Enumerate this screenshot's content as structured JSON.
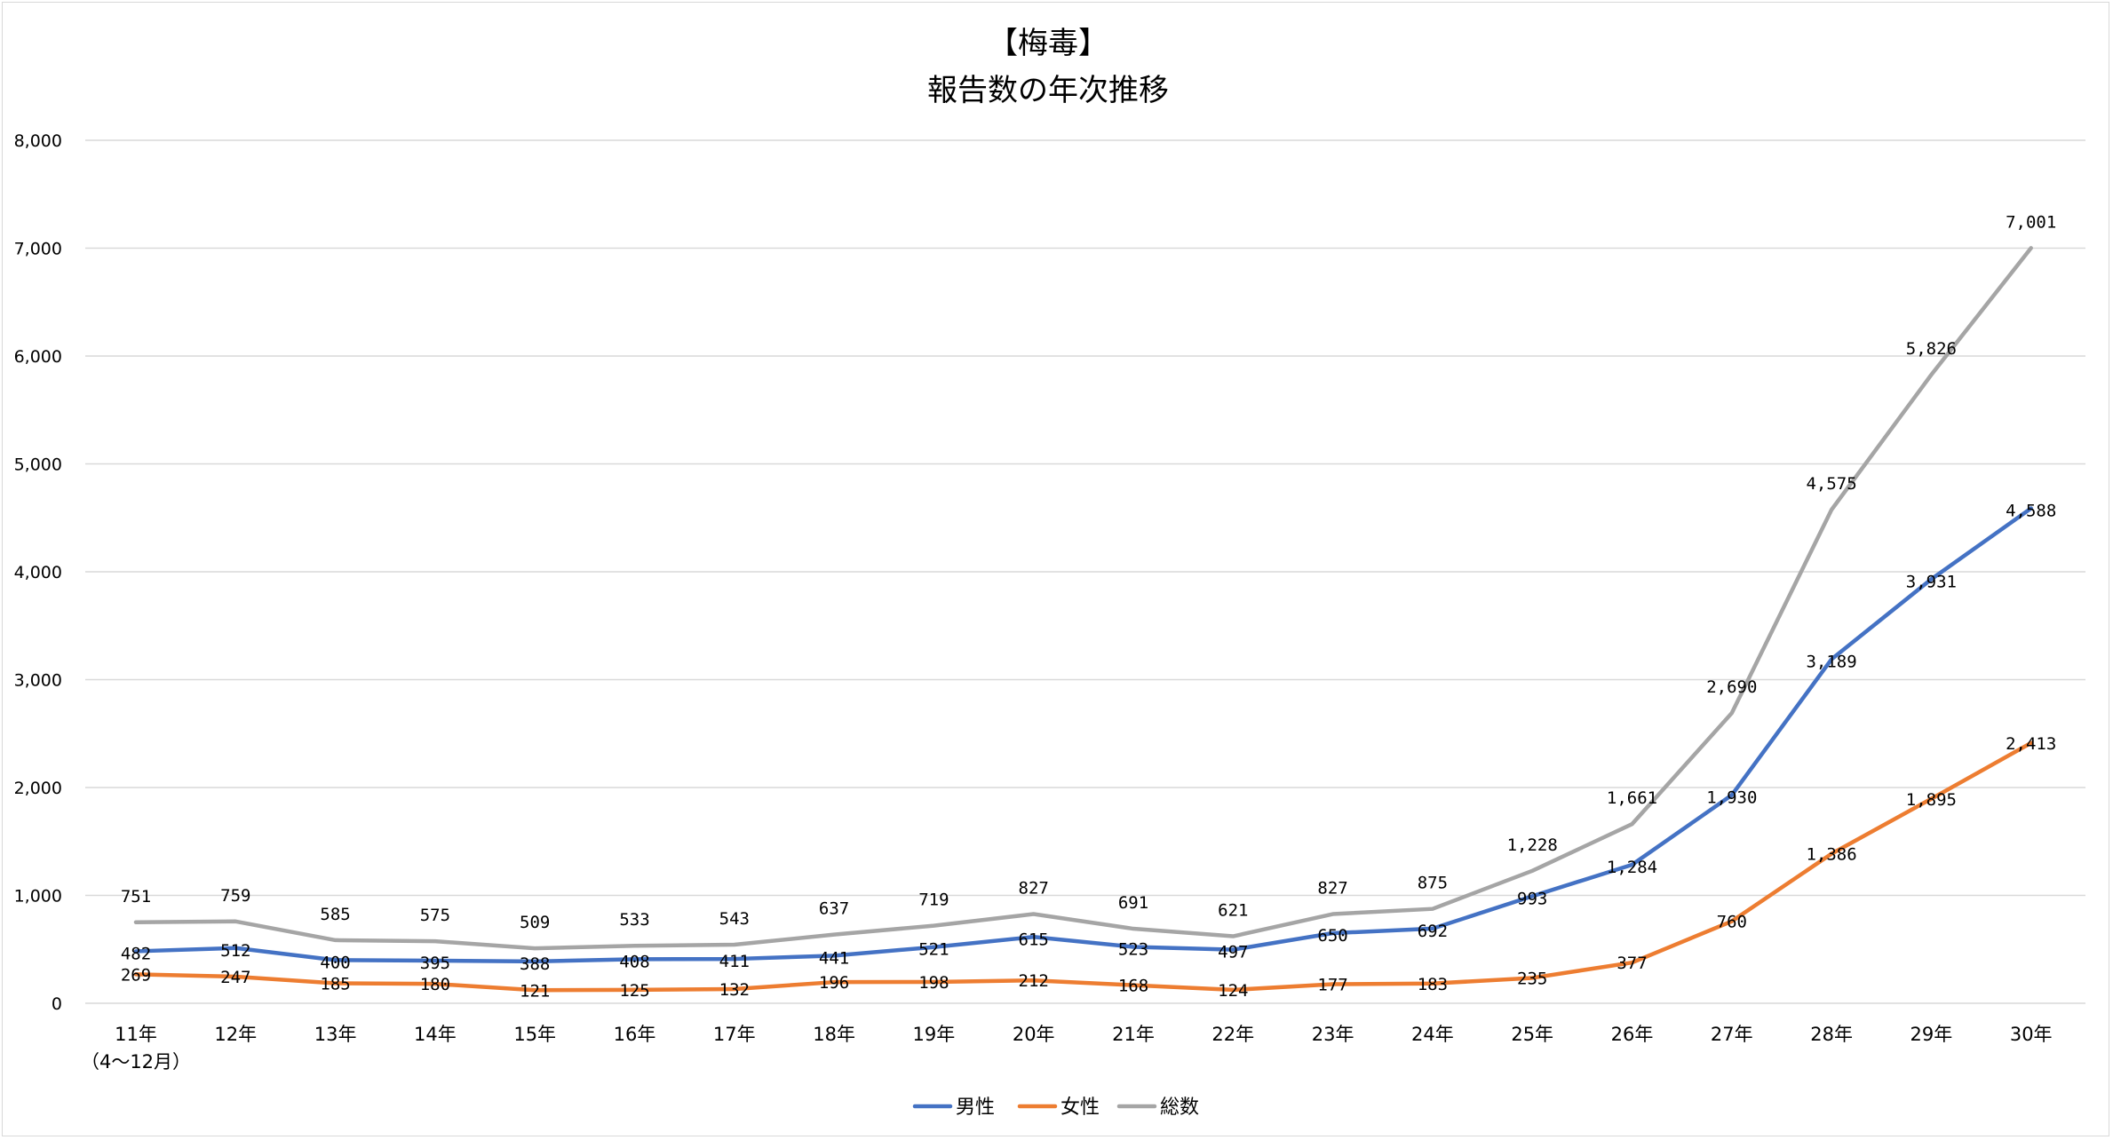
{
  "chart_data": {
    "type": "line",
    "title": "【梅毒】",
    "subtitle": "報告数の年次推移",
    "categories": [
      "11年",
      "12年",
      "13年",
      "14年",
      "15年",
      "16年",
      "17年",
      "18年",
      "19年",
      "20年",
      "21年",
      "22年",
      "23年",
      "24年",
      "25年",
      "26年",
      "27年",
      "28年",
      "29年",
      "30年"
    ],
    "category_note": "（4～12月）",
    "ylim": [
      0,
      8000
    ],
    "yticks": [
      "0",
      "1,000",
      "2,000",
      "3,000",
      "4,000",
      "5,000",
      "6,000",
      "7,000",
      "8,000"
    ],
    "grid": true,
    "legend_position": "bottom",
    "series": [
      {
        "name": "男性",
        "color": "#4472c4",
        "values": [
          482,
          512,
          400,
          395,
          388,
          408,
          411,
          441,
          521,
          615,
          523,
          497,
          650,
          692,
          993,
          1284,
          1930,
          3189,
          3931,
          4588
        ],
        "labels": [
          "482",
          "512",
          "400",
          "395",
          "388",
          "408",
          "411",
          "441",
          "521",
          "615",
          "523",
          "497",
          "650",
          "692",
          "993",
          "1,284",
          "1,930",
          "3,189",
          "3,931",
          "4,588"
        ]
      },
      {
        "name": "女性",
        "color": "#ed7d31",
        "values": [
          269,
          247,
          185,
          180,
          121,
          125,
          132,
          196,
          198,
          212,
          168,
          124,
          177,
          183,
          235,
          377,
          760,
          1386,
          1895,
          2413
        ],
        "labels": [
          "269",
          "247",
          "185",
          "180",
          "121",
          "125",
          "132",
          "196",
          "198",
          "212",
          "168",
          "124",
          "177",
          "183",
          "235",
          "377",
          "760",
          "1,386",
          "1,895",
          "2,413"
        ]
      },
      {
        "name": "総数",
        "color": "#a5a5a5",
        "values": [
          751,
          759,
          585,
          575,
          509,
          533,
          543,
          637,
          719,
          827,
          691,
          621,
          827,
          875,
          1228,
          1661,
          2690,
          4575,
          5826,
          7001
        ],
        "labels": [
          "751",
          "759",
          "585",
          "575",
          "509",
          "533",
          "543",
          "637",
          "719",
          "827",
          "691",
          "621",
          "827",
          "875",
          "1,228",
          "1,661",
          "2,690",
          "4,575",
          "5,826",
          "7,001"
        ]
      }
    ]
  }
}
